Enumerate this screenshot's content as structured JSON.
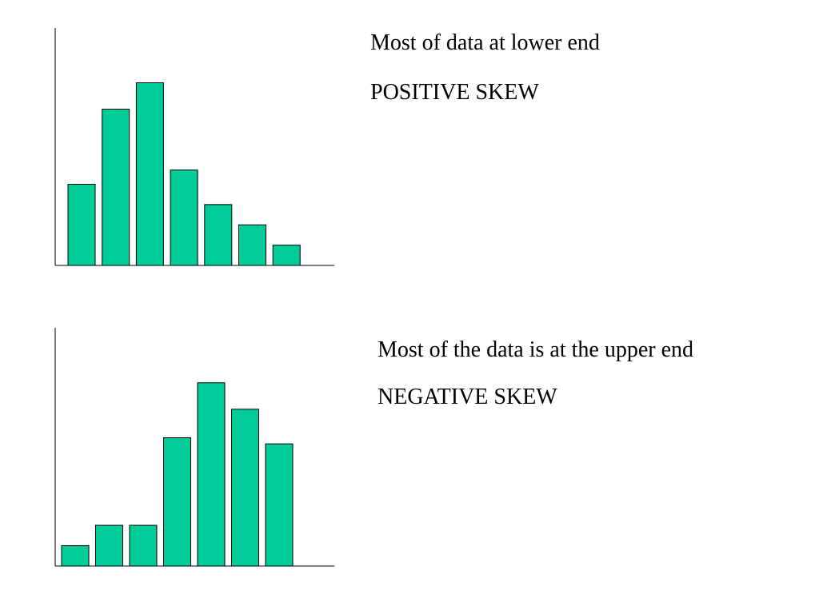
{
  "colors": {
    "bar_fill": "#00cc99",
    "bar_stroke": "#000000",
    "axis": "#000000",
    "background": "#ffffff"
  },
  "panels": [
    {
      "caption": "Most of data at lower end",
      "label": "POSITIVE SKEW"
    },
    {
      "caption": "Most of the data is at the upper end",
      "label": "NEGATIVE SKEW"
    }
  ],
  "chart_data": [
    {
      "type": "bar",
      "categories": [
        "1",
        "2",
        "3",
        "4",
        "5",
        "6",
        "7"
      ],
      "values": [
        4,
        7.7,
        9,
        4.7,
        3,
        2,
        1
      ],
      "title": "",
      "xlabel": "",
      "ylabel": "",
      "ylim": [
        0,
        11.7
      ],
      "grid": false,
      "show_tick_labels": false
    },
    {
      "type": "bar",
      "categories": [
        "1",
        "2",
        "3",
        "4",
        "5",
        "6",
        "7"
      ],
      "values": [
        1,
        2,
        2,
        6.3,
        9,
        7.7,
        6
      ],
      "title": "",
      "xlabel": "",
      "ylabel": "",
      "ylim": [
        0,
        11.7
      ],
      "grid": false,
      "show_tick_labels": false
    }
  ]
}
